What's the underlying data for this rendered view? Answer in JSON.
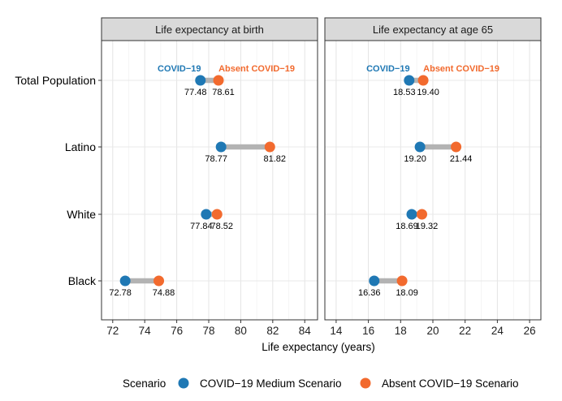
{
  "chart_data": {
    "type": "dumbbell",
    "xlabel": "Life expectancy (years)",
    "categories": [
      "Total Population",
      "Latino",
      "White",
      "Black"
    ],
    "colors": {
      "covid": "#1f78b4",
      "absent": "#f26a2e",
      "connector": "#b3b3b3"
    },
    "legend": {
      "title": "Scenario",
      "placement": "bottom",
      "items": [
        {
          "label": "COVID−19 Medium Scenario",
          "color": "#1f78b4"
        },
        {
          "label": "Absent COVID−19 Scenario",
          "color": "#f26a2e"
        }
      ]
    },
    "panels": [
      {
        "title": "Life expectancy at birth",
        "xlim": [
          71.3,
          84.8
        ],
        "xticks": [
          72,
          74,
          76,
          78,
          80,
          82,
          84
        ],
        "covid": [
          77.48,
          78.77,
          77.84,
          72.78
        ],
        "absent": [
          78.61,
          81.82,
          78.52,
          74.88
        ],
        "covid_labels": [
          "77.48",
          "78.77",
          "77.84",
          "72.78"
        ],
        "absent_labels": [
          "78.61",
          "81.82",
          "78.52",
          "74.88"
        ],
        "annotations": {
          "covid": "COVID−19",
          "absent": "Absent COVID−19"
        }
      },
      {
        "title": "Life expectancy at age 65",
        "xlim": [
          13.3,
          26.7
        ],
        "xticks": [
          14,
          16,
          18,
          20,
          22,
          24,
          26
        ],
        "covid": [
          18.53,
          19.2,
          18.69,
          16.36
        ],
        "absent": [
          19.4,
          21.44,
          19.32,
          18.09
        ],
        "covid_labels": [
          "18.53",
          "19.20",
          "18.69",
          "16.36"
        ],
        "absent_labels": [
          "19.40",
          "21.44",
          "19.32",
          "18.09"
        ],
        "annotations": {
          "covid": "COVID−19",
          "absent": "Absent COVID−19"
        }
      }
    ]
  }
}
